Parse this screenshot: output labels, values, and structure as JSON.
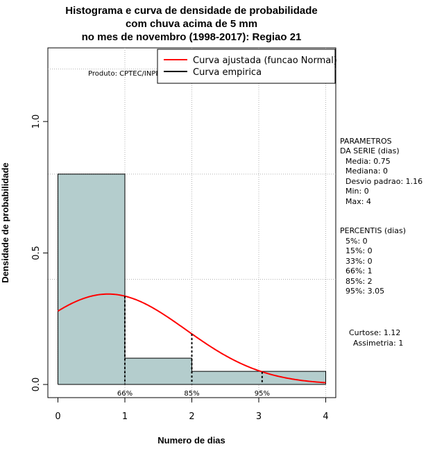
{
  "chart_data": {
    "type": "histogram",
    "title_lines": [
      "Histograma e curva de densidade de probabilidade",
      "com chuva acima de 5 mm",
      "no mes de novembro (1998-2017): Regiao 21"
    ],
    "xlabel": "Numero de dias",
    "ylabel": "Densidade de probabilidade",
    "xlim": [
      -0.15,
      4.15
    ],
    "ylim": [
      -0.05,
      1.28
    ],
    "x_ticks": [
      0,
      1,
      2,
      3,
      4
    ],
    "y_ticks": [
      0.0,
      0.5,
      1.0
    ],
    "y_tick_labels": [
      "0.0",
      "0.5",
      "1.0"
    ],
    "grid_x": [
      1,
      2,
      3,
      4
    ],
    "grid_y": [
      0.4,
      0.8,
      1.2
    ],
    "bins": [
      {
        "x0": 0,
        "x1": 1,
        "density": 0.8
      },
      {
        "x0": 1,
        "x1": 2,
        "density": 0.1
      },
      {
        "x0": 2,
        "x1": 3,
        "density": 0.05
      },
      {
        "x0": 3,
        "x1": 4,
        "density": 0.05
      }
    ],
    "normal_fit": {
      "name": "Curva ajustada (funcao Normal)",
      "mean": 0.75,
      "sd": 1.16,
      "color": "#ff0000"
    },
    "empirical": {
      "name": "Curva empirica",
      "color": "#000000"
    },
    "percentile_markers": [
      {
        "label": "66%",
        "x": 1
      },
      {
        "label": "85%",
        "x": 2
      },
      {
        "label": "95%",
        "x": 3.05
      }
    ],
    "bar_color": "#b4cdcd",
    "product_label": "Produto: CPTEC/INPE",
    "legend_position": "top-right"
  },
  "side_panel": {
    "params_title": [
      "PARAMETROS",
      "DA SERIE (dias)"
    ],
    "params": [
      "Media: 0.75",
      "Mediana: 0",
      "Desvio padrao: 1.16",
      "Min: 0",
      "Max: 4"
    ],
    "percentis_title": "PERCENTIS (dias)",
    "percentis": [
      "5%: 0",
      "15%: 0",
      "33%: 0",
      "66%: 1",
      "85%: 2",
      "95%: 3.05"
    ],
    "curtose": "Curtose: 1.12",
    "assimetria": "Assimetria: 1"
  }
}
